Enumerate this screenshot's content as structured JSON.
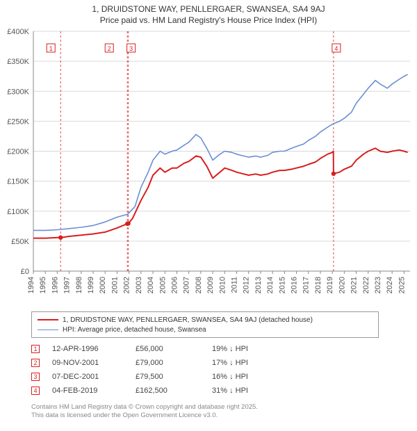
{
  "title_line1": "1, DRUIDSTONE WAY, PENLLERGAER, SWANSEA, SA4 9AJ",
  "title_line2": "Price paid vs. HM Land Registry's House Price Index (HPI)",
  "chart": {
    "type": "line",
    "background_color": "#ffffff",
    "grid_color": "#d9d9d9",
    "axis_color": "#888888",
    "x_years": [
      1994,
      1995,
      1996,
      1997,
      1998,
      1999,
      2000,
      2001,
      2002,
      2003,
      2004,
      2005,
      2006,
      2007,
      2008,
      2009,
      2010,
      2011,
      2012,
      2013,
      2014,
      2015,
      2016,
      2017,
      2018,
      2019,
      2020,
      2021,
      2022,
      2023,
      2024,
      2025
    ],
    "x_min": 1994,
    "x_max": 2025.5,
    "y_min": 0,
    "y_max": 400000,
    "y_ticks": [
      0,
      50000,
      100000,
      150000,
      200000,
      250000,
      300000,
      350000,
      400000
    ],
    "y_tick_labels": [
      "£0",
      "£50K",
      "£100K",
      "£150K",
      "£200K",
      "£250K",
      "£300K",
      "£350K",
      "£400K"
    ],
    "series": [
      {
        "name": "price_paid",
        "label": "1, DRUIDSTONE WAY, PENLLERGAER, SWANSEA, SA4 9AJ (detached house)",
        "color": "#d81e1e",
        "line_width": 2,
        "data": [
          [
            1994.0,
            55000
          ],
          [
            1995.0,
            55000
          ],
          [
            1996.0,
            56000
          ],
          [
            1996.3,
            56000
          ],
          [
            1997.0,
            58000
          ],
          [
            1998.0,
            60000
          ],
          [
            1999.0,
            62000
          ],
          [
            2000.0,
            65000
          ],
          [
            2001.0,
            72000
          ],
          [
            2001.85,
            79000
          ],
          [
            2001.95,
            79500
          ],
          [
            2002.3,
            88000
          ],
          [
            2003.0,
            118000
          ],
          [
            2003.6,
            140000
          ],
          [
            2004.0,
            160000
          ],
          [
            2004.6,
            172000
          ],
          [
            2005.0,
            165000
          ],
          [
            2005.6,
            172000
          ],
          [
            2006.0,
            172000
          ],
          [
            2006.6,
            180000
          ],
          [
            2007.0,
            183000
          ],
          [
            2007.6,
            192000
          ],
          [
            2008.0,
            190000
          ],
          [
            2008.5,
            175000
          ],
          [
            2009.0,
            155000
          ],
          [
            2009.6,
            165000
          ],
          [
            2010.0,
            172000
          ],
          [
            2010.6,
            168000
          ],
          [
            2011.0,
            165000
          ],
          [
            2011.6,
            162000
          ],
          [
            2012.0,
            160000
          ],
          [
            2012.6,
            162000
          ],
          [
            2013.0,
            160000
          ],
          [
            2013.6,
            162000
          ],
          [
            2014.0,
            165000
          ],
          [
            2014.6,
            168000
          ],
          [
            2015.0,
            168000
          ],
          [
            2015.6,
            170000
          ],
          [
            2016.0,
            172000
          ],
          [
            2016.6,
            175000
          ],
          [
            2017.0,
            178000
          ],
          [
            2017.6,
            182000
          ],
          [
            2018.0,
            188000
          ],
          [
            2018.6,
            195000
          ],
          [
            2019.0,
            198000
          ],
          [
            2019.09,
            200000
          ],
          [
            2019.1,
            162500
          ],
          [
            2019.6,
            165000
          ],
          [
            2020.0,
            170000
          ],
          [
            2020.6,
            175000
          ],
          [
            2021.0,
            185000
          ],
          [
            2021.6,
            195000
          ],
          [
            2022.0,
            200000
          ],
          [
            2022.6,
            205000
          ],
          [
            2023.0,
            200000
          ],
          [
            2023.6,
            198000
          ],
          [
            2024.0,
            200000
          ],
          [
            2024.6,
            202000
          ],
          [
            2025.0,
            200000
          ],
          [
            2025.3,
            198000
          ]
        ]
      },
      {
        "name": "hpi",
        "label": "HPI: Average price, detached house, Swansea",
        "color": "#6a8fd4",
        "line_width": 1.6,
        "data": [
          [
            1994.0,
            68000
          ],
          [
            1995.0,
            68000
          ],
          [
            1996.0,
            69000
          ],
          [
            1997.0,
            71000
          ],
          [
            1998.0,
            73000
          ],
          [
            1999.0,
            76000
          ],
          [
            2000.0,
            82000
          ],
          [
            2001.0,
            90000
          ],
          [
            2001.9,
            95000
          ],
          [
            2002.5,
            108000
          ],
          [
            2003.0,
            140000
          ],
          [
            2003.6,
            165000
          ],
          [
            2004.0,
            185000
          ],
          [
            2004.6,
            200000
          ],
          [
            2005.0,
            195000
          ],
          [
            2005.6,
            200000
          ],
          [
            2006.0,
            202000
          ],
          [
            2006.6,
            210000
          ],
          [
            2007.0,
            215000
          ],
          [
            2007.6,
            228000
          ],
          [
            2008.0,
            222000
          ],
          [
            2008.5,
            205000
          ],
          [
            2009.0,
            185000
          ],
          [
            2009.6,
            195000
          ],
          [
            2010.0,
            200000
          ],
          [
            2010.6,
            198000
          ],
          [
            2011.0,
            195000
          ],
          [
            2011.6,
            192000
          ],
          [
            2012.0,
            190000
          ],
          [
            2012.6,
            192000
          ],
          [
            2013.0,
            190000
          ],
          [
            2013.6,
            193000
          ],
          [
            2014.0,
            198000
          ],
          [
            2014.6,
            200000
          ],
          [
            2015.0,
            200000
          ],
          [
            2015.6,
            205000
          ],
          [
            2016.0,
            208000
          ],
          [
            2016.6,
            212000
          ],
          [
            2017.0,
            218000
          ],
          [
            2017.6,
            225000
          ],
          [
            2018.0,
            232000
          ],
          [
            2018.6,
            240000
          ],
          [
            2019.0,
            245000
          ],
          [
            2019.6,
            250000
          ],
          [
            2020.0,
            255000
          ],
          [
            2020.6,
            265000
          ],
          [
            2021.0,
            280000
          ],
          [
            2021.6,
            295000
          ],
          [
            2022.0,
            305000
          ],
          [
            2022.6,
            318000
          ],
          [
            2023.0,
            312000
          ],
          [
            2023.6,
            305000
          ],
          [
            2024.0,
            312000
          ],
          [
            2024.6,
            320000
          ],
          [
            2025.0,
            325000
          ],
          [
            2025.3,
            328000
          ]
        ]
      }
    ],
    "sale_markers": [
      {
        "n": "1",
        "year": 1996.28,
        "value": 56000,
        "color": "#d81e1e"
      },
      {
        "n": "2",
        "year": 2001.86,
        "value": 79000,
        "color": "#d81e1e"
      },
      {
        "n": "3",
        "year": 2001.94,
        "value": 79500,
        "color": "#d81e1e"
      },
      {
        "n": "4",
        "year": 2019.1,
        "value": 162500,
        "color": "#d81e1e"
      }
    ],
    "sale_label_offsets": {
      "1": -14,
      "2": -26,
      "3": 4,
      "4": 4
    }
  },
  "legend": {
    "items": [
      {
        "color": "#d81e1e",
        "thick": 2,
        "label": "1, DRUIDSTONE WAY, PENLLERGAER, SWANSEA, SA4 9AJ (detached house)"
      },
      {
        "color": "#6a8fd4",
        "thick": 1.5,
        "label": "HPI: Average price, detached house, Swansea"
      }
    ]
  },
  "sales_table": [
    {
      "n": "1",
      "color": "#d81e1e",
      "date": "12-APR-1996",
      "price": "£56,000",
      "diff": "19% ↓ HPI"
    },
    {
      "n": "2",
      "color": "#d81e1e",
      "date": "09-NOV-2001",
      "price": "£79,000",
      "diff": "17% ↓ HPI"
    },
    {
      "n": "3",
      "color": "#d81e1e",
      "date": "07-DEC-2001",
      "price": "£79,500",
      "diff": "16% ↓ HPI"
    },
    {
      "n": "4",
      "color": "#d81e1e",
      "date": "04-FEB-2019",
      "price": "£162,500",
      "diff": "31% ↓ HPI"
    }
  ],
  "footer_line1": "Contains HM Land Registry data © Crown copyright and database right 2025.",
  "footer_line2": "This data is licensed under the Open Government Licence v3.0."
}
